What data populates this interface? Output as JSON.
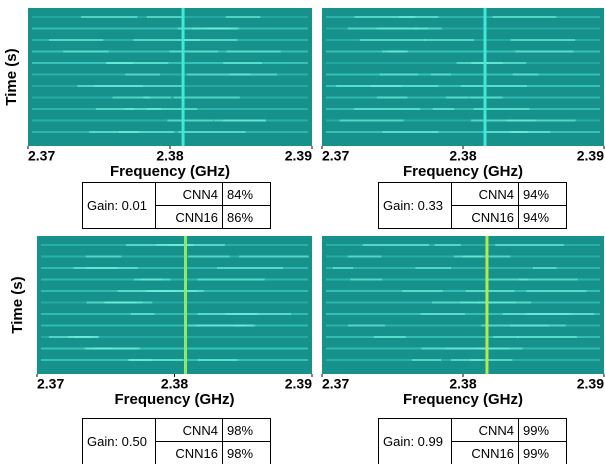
{
  "chart_data": [
    {
      "type": "spectrogram",
      "xlabel": "Frequency (GHz)",
      "ylabel": "Time (s)",
      "xlim": [
        2.37,
        2.39
      ],
      "xticks": [
        2.37,
        2.38,
        2.39
      ],
      "table": {
        "gain": "Gain: 0.01",
        "rows": [
          [
            "CNN4",
            "84%"
          ],
          [
            "CNN16",
            "86%"
          ]
        ]
      }
    },
    {
      "type": "spectrogram",
      "xlabel": "Frequency (GHz)",
      "xlim": [
        2.37,
        2.39
      ],
      "xticks": [
        2.37,
        2.38,
        2.39
      ],
      "table": {
        "gain": "Gain: 0.33",
        "rows": [
          [
            "CNN4",
            "94%"
          ],
          [
            "CNN16",
            "94%"
          ]
        ]
      }
    },
    {
      "type": "spectrogram",
      "xlabel": "Frequency (GHz)",
      "ylabel": "Time (s)",
      "xlim": [
        2.37,
        2.39
      ],
      "xticks": [
        2.37,
        2.38,
        2.39
      ],
      "table": {
        "gain": "Gain: 0.50",
        "rows": [
          [
            "CNN4",
            "98%"
          ],
          [
            "CNN16",
            "98%"
          ]
        ]
      }
    },
    {
      "type": "spectrogram",
      "xlabel": "Frequency (GHz)",
      "xlim": [
        2.37,
        2.39
      ],
      "xticks": [
        2.37,
        2.38,
        2.39
      ],
      "table": {
        "gain": "Gain: 0.99",
        "rows": [
          [
            "CNN4",
            "99%"
          ],
          [
            "CNN16",
            "99%"
          ]
        ]
      }
    }
  ]
}
